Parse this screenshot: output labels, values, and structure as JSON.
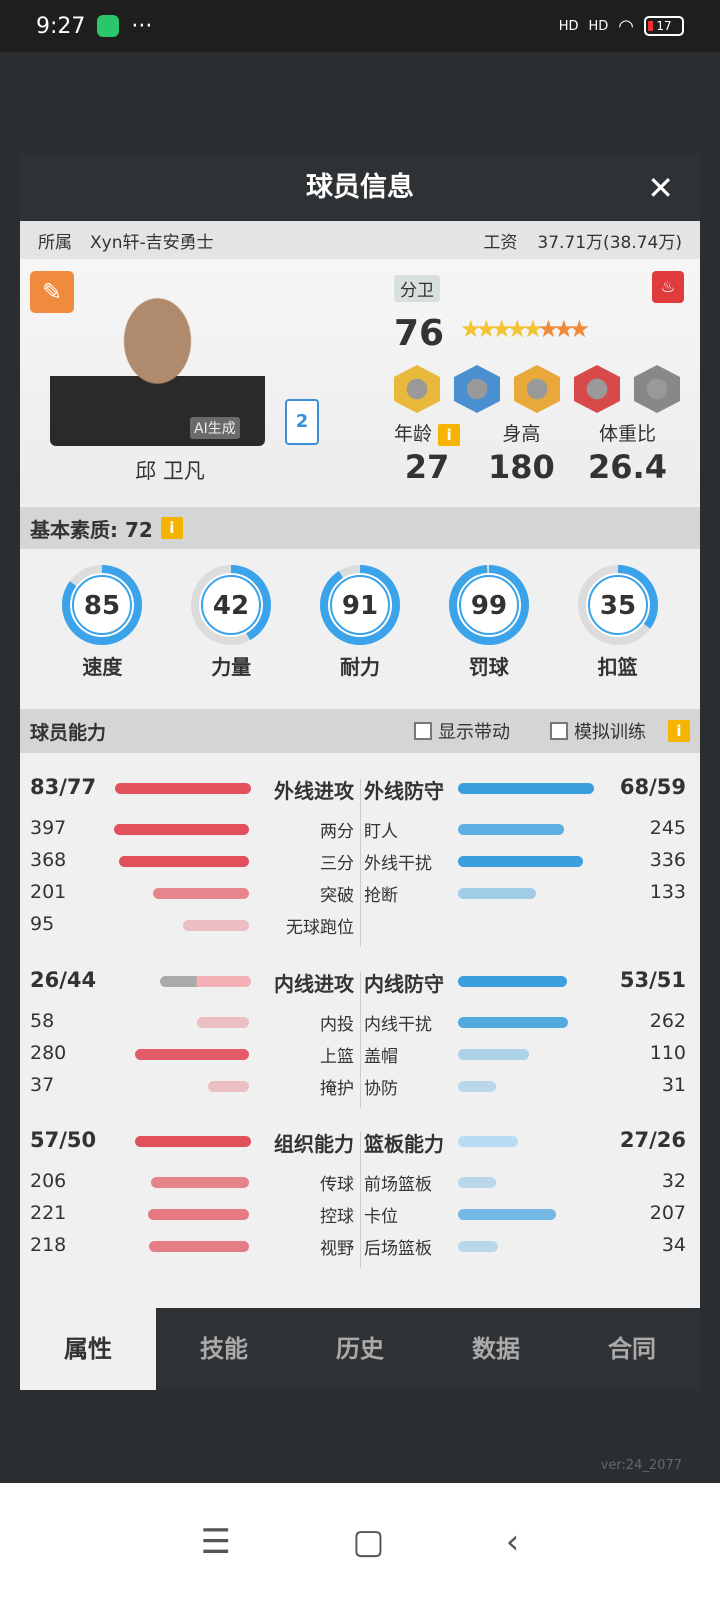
{
  "status_bar": {
    "time": "9:27",
    "dots": "···",
    "signal1": "HD",
    "signal2": "HD",
    "battery": "17"
  },
  "modal": {
    "title": "球员信息",
    "close": "✕"
  },
  "info": {
    "team_label": "所属",
    "team": "Xyn轩-吉安勇士",
    "salary_label": "工资",
    "salary": "37.71万(38.74万)"
  },
  "player": {
    "name": "邱 卫凡",
    "ai_tag": "AI生成",
    "jersey": "2",
    "position": "分卫",
    "overall": "76",
    "stars_gold": 5,
    "stars_orange": 3,
    "age_label": "年龄",
    "age": "27",
    "height_label": "身高",
    "height": "180",
    "bmi_label": "体重比",
    "bmi": "26.4",
    "badge_colors": [
      "#e8b93a",
      "#4a8fd0",
      "#e8a93a",
      "#d84a4a",
      "#888888"
    ]
  },
  "basic": {
    "label": "基本素质: 72",
    "info": "i",
    "items": [
      {
        "label": "速度",
        "value": 85
      },
      {
        "label": "力量",
        "value": 42
      },
      {
        "label": "耐力",
        "value": 91
      },
      {
        "label": "罚球",
        "value": 99
      },
      {
        "label": "扣篮",
        "value": 35
      }
    ]
  },
  "ability": {
    "label": "球员能力",
    "show_label": "显示带动",
    "sim_label": "模拟训练",
    "info": "i"
  },
  "groups": [
    {
      "left": {
        "title": "外线进攻",
        "score": "83/77",
        "fill": 1.0,
        "items": [
          {
            "label": "两分",
            "value": 397
          },
          {
            "label": "三分",
            "value": 368
          },
          {
            "label": "突破",
            "value": 201
          },
          {
            "label": "无球跑位",
            "value": 95
          }
        ]
      },
      "right": {
        "title": "外线防守",
        "score": "68/59",
        "fill": 1.0,
        "items": [
          {
            "label": "盯人",
            "value": 245
          },
          {
            "label": "外线干扰",
            "value": 336
          },
          {
            "label": "抢断",
            "value": 133
          }
        ]
      }
    },
    {
      "left": {
        "title": "内线进攻",
        "score": "26/44",
        "fill": 0.67,
        "items": [
          {
            "label": "内投",
            "value": 58
          },
          {
            "label": "上篮",
            "value": 280
          },
          {
            "label": "掩护",
            "value": 37
          }
        ]
      },
      "right": {
        "title": "内线防守",
        "score": "53/51",
        "fill": 0.8,
        "items": [
          {
            "label": "内线干扰",
            "value": 262
          },
          {
            "label": "盖帽",
            "value": 110
          },
          {
            "label": "协防",
            "value": 31
          }
        ]
      }
    },
    {
      "left": {
        "title": "组织能力",
        "score": "57/50",
        "fill": 0.85,
        "items": [
          {
            "label": "传球",
            "value": 206
          },
          {
            "label": "控球",
            "value": 221
          },
          {
            "label": "视野",
            "value": 218
          }
        ]
      },
      "right": {
        "title": "篮板能力",
        "score": "27/26",
        "fill": 0.44,
        "items": [
          {
            "label": "前场篮板",
            "value": 32
          },
          {
            "label": "卡位",
            "value": 207
          },
          {
            "label": "后场篮板",
            "value": 34
          }
        ]
      }
    }
  ],
  "tabs": [
    "属性",
    "技能",
    "历史",
    "数据",
    "合同"
  ],
  "version": "ver:24_2077",
  "nav": {
    "menu": "☰",
    "home": "▢",
    "back": "‹"
  }
}
